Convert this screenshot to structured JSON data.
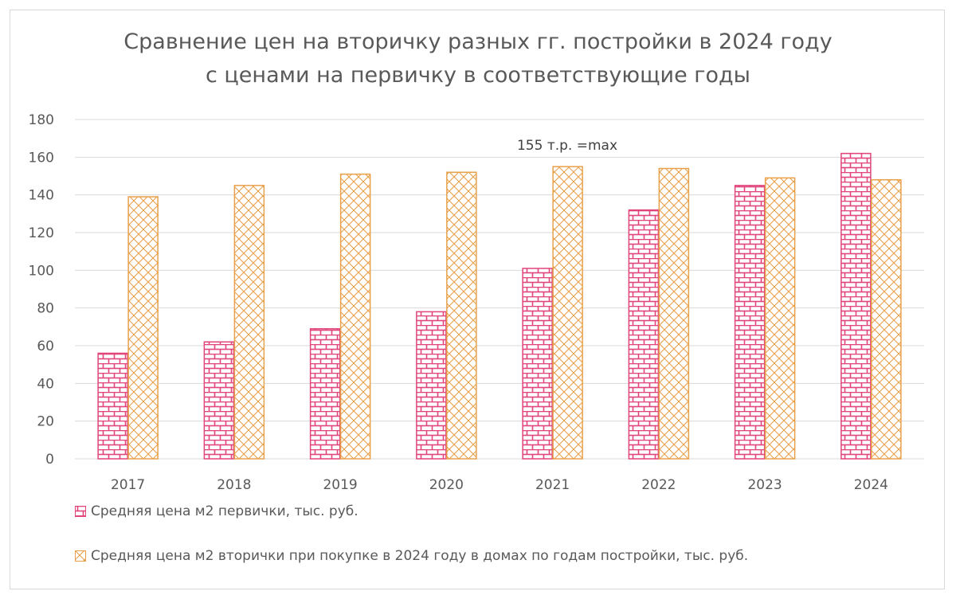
{
  "title": {
    "line1": "Сравнение цен на вторичку разных гг. постройки в 2024 году",
    "line2": "с ценами на первичку в соответствующие годы"
  },
  "annotation": "155 т.р. =max",
  "legend": {
    "primary": "Средняя цена м2 первички, тыс. руб.",
    "secondary": "Средняя цена м2 вторички при покупке в 2024 году в домах по годам постройки, тыс. руб."
  },
  "colors": {
    "primary": "#e0457b",
    "secondary": "#e8a04a",
    "grid": "#d9d9d9",
    "text": "#595959"
  },
  "chart_data": {
    "type": "bar",
    "title": "Сравнение цен на вторичку разных гг. постройки в 2024 году с ценами на первичку в соответствующие годы",
    "categories": [
      "2017",
      "2018",
      "2019",
      "2020",
      "2021",
      "2022",
      "2023",
      "2024"
    ],
    "series": [
      {
        "name": "Средняя цена м2 первички, тыс. руб.",
        "values": [
          56,
          62,
          69,
          78,
          101,
          132,
          145,
          162
        ],
        "pattern": "brick"
      },
      {
        "name": "Средняя цена м2 вторички при покупке в 2024 году в домах по годам постройки, тыс. руб.",
        "values": [
          139,
          145,
          151,
          152,
          155,
          154,
          149,
          148
        ],
        "pattern": "lattice"
      }
    ],
    "ylim": [
      0,
      180
    ],
    "yticks": [
      0,
      20,
      40,
      60,
      80,
      100,
      120,
      140,
      160,
      180
    ],
    "grid": true,
    "legend_position": "bottom-left",
    "annotations": [
      {
        "text": "155 т.р. =max",
        "category": "2021"
      }
    ]
  }
}
